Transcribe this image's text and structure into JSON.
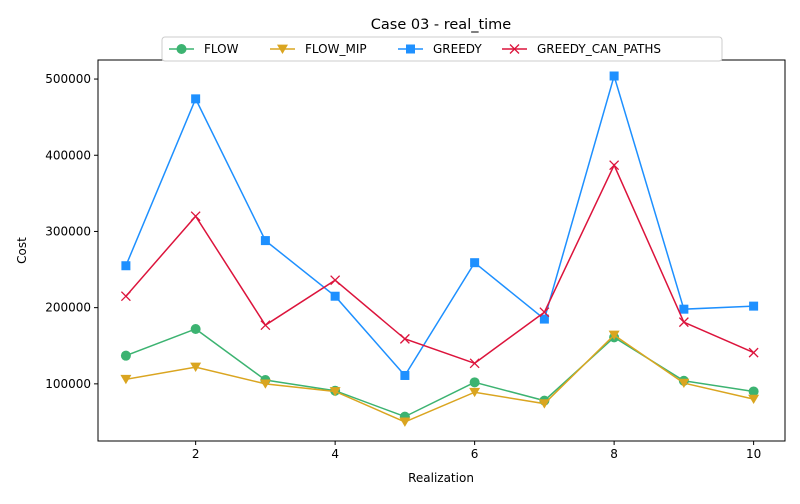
{
  "chart_data": {
    "type": "line",
    "title": "Case 03 - real_time",
    "xlabel": "Realization",
    "ylabel": "Cost",
    "x": [
      1,
      2,
      3,
      4,
      5,
      6,
      7,
      8,
      9,
      10
    ],
    "xlim": [
      0.6,
      10.45
    ],
    "ylim": [
      25000,
      525000
    ],
    "xticks": [
      2,
      4,
      6,
      8,
      10
    ],
    "yticks": [
      100000,
      200000,
      300000,
      400000,
      500000
    ],
    "grid": false,
    "legend_position": "top-center",
    "series": [
      {
        "name": "FLOW",
        "color": "#3cb371",
        "marker": "circle",
        "values": [
          137000,
          172000,
          105000,
          91000,
          57000,
          102000,
          78000,
          161000,
          104000,
          90000
        ]
      },
      {
        "name": "FLOW_MIP",
        "color": "#daa520",
        "marker": "triangle-down",
        "values": [
          106000,
          122000,
          100000,
          90000,
          50000,
          89000,
          74000,
          164000,
          101000,
          80000
        ]
      },
      {
        "name": "GREEDY",
        "color": "#1e90ff",
        "marker": "square",
        "values": [
          255000,
          474000,
          288000,
          215000,
          111000,
          259000,
          185000,
          504000,
          198000,
          202000
        ]
      },
      {
        "name": "GREEDY_CAN_PATHS",
        "color": "#dc143c",
        "marker": "x",
        "values": [
          215000,
          320000,
          177000,
          236000,
          159000,
          127000,
          194000,
          387000,
          181000,
          141000
        ]
      }
    ]
  }
}
